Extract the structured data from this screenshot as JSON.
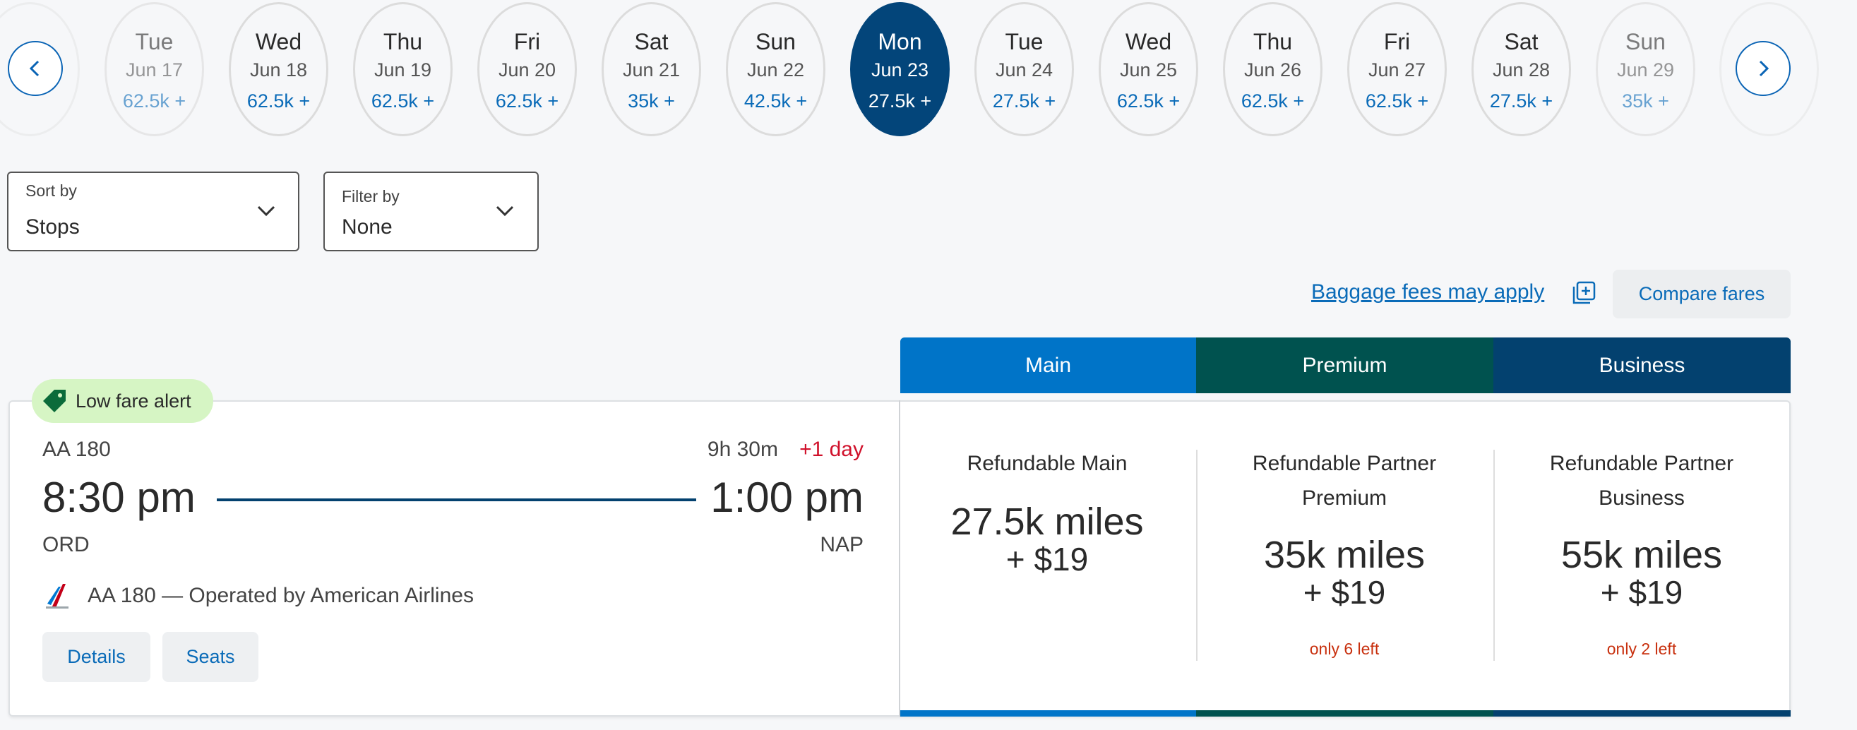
{
  "date_carousel": {
    "days": [
      {
        "weekday": "Tue",
        "date": "Jun 17",
        "price": "62.5k +"
      },
      {
        "weekday": "Wed",
        "date": "Jun 18",
        "price": "62.5k +"
      },
      {
        "weekday": "Thu",
        "date": "Jun 19",
        "price": "62.5k +"
      },
      {
        "weekday": "Fri",
        "date": "Jun 20",
        "price": "62.5k +"
      },
      {
        "weekday": "Sat",
        "date": "Jun 21",
        "price": "35k +"
      },
      {
        "weekday": "Sun",
        "date": "Jun 22",
        "price": "42.5k +"
      },
      {
        "weekday": "Mon",
        "date": "Jun 23",
        "price": "27.5k +",
        "selected": true
      },
      {
        "weekday": "Tue",
        "date": "Jun 24",
        "price": "27.5k +"
      },
      {
        "weekday": "Wed",
        "date": "Jun 25",
        "price": "62.5k +"
      },
      {
        "weekday": "Thu",
        "date": "Jun 26",
        "price": "62.5k +"
      },
      {
        "weekday": "Fri",
        "date": "Jun 27",
        "price": "62.5k +"
      },
      {
        "weekday": "Sat",
        "date": "Jun 28",
        "price": "27.5k +"
      },
      {
        "weekday": "Sun",
        "date": "Jun 29",
        "price": "35k +"
      }
    ]
  },
  "sort": {
    "label": "Sort by",
    "value": "Stops"
  },
  "filter": {
    "label": "Filter by",
    "value": "None"
  },
  "baggage_link": "Baggage fees may apply",
  "compare_button": "Compare fares",
  "fare_tabs": [
    "Main",
    "Premium",
    "Business"
  ],
  "flight": {
    "badge": "Low fare alert",
    "number": "AA 180",
    "duration": "9h 30m",
    "day_offset": "+1 day",
    "depart_time": "8:30 pm",
    "arrive_time": "1:00 pm",
    "origin": "ORD",
    "destination": "NAP",
    "operator": "AA 180 — Operated by American Airlines",
    "buttons": [
      "Details",
      "Seats"
    ]
  },
  "fares": [
    {
      "name_lines": [
        "Refundable Main"
      ],
      "miles": "27.5k miles",
      "fee": "+ $19"
    },
    {
      "name_lines": [
        "Refundable Partner",
        "Premium"
      ],
      "miles": "35k miles",
      "fee": "+ $19",
      "availability": "only 6 left"
    },
    {
      "name_lines": [
        "Refundable Partner",
        "Business"
      ],
      "miles": "55k miles",
      "fee": "+ $19",
      "availability": "only 2 left"
    }
  ]
}
